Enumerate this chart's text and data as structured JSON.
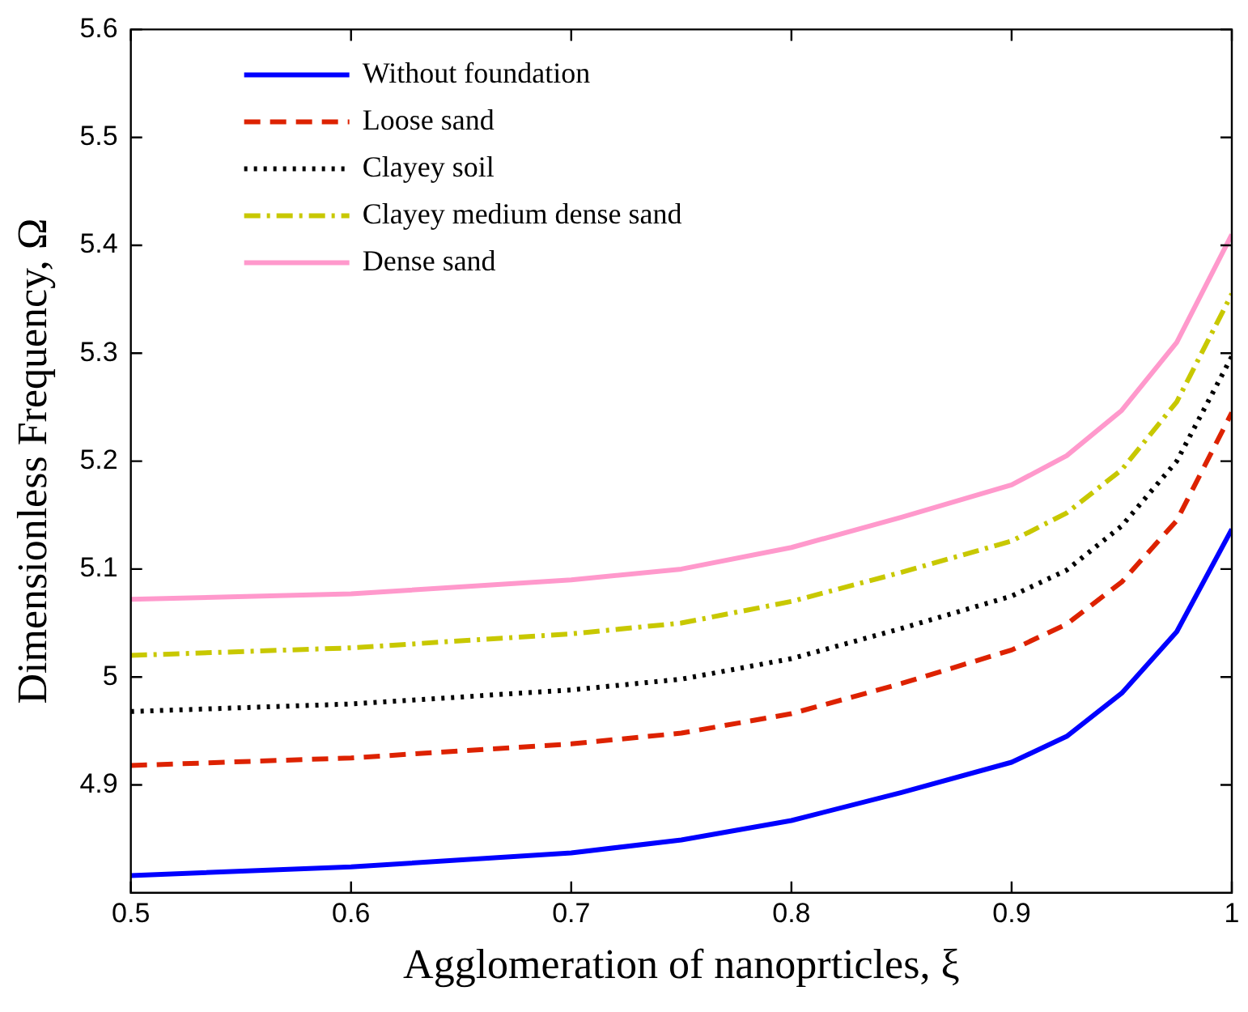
{
  "chart_data": {
    "type": "line",
    "xlabel": "Agglomeration of nanoprticles, ξ",
    "ylabel": "Dimensionless Frequency, Ω",
    "x": [
      0.5,
      0.6,
      0.7,
      0.75,
      0.8,
      0.85,
      0.9,
      0.925,
      0.95,
      0.975,
      1.0
    ],
    "series": [
      {
        "name": "Without foundation",
        "color": "#0000ff",
        "line_style": "solid",
        "values": [
          4.816,
          4.824,
          4.837,
          4.849,
          4.867,
          4.893,
          4.921,
          4.945,
          4.985,
          5.042,
          5.137
        ]
      },
      {
        "name": "Loose sand",
        "color": "#dd2200",
        "line_style": "dashed",
        "values": [
          4.918,
          4.925,
          4.938,
          4.948,
          4.966,
          4.994,
          5.025,
          5.049,
          5.088,
          5.145,
          5.245
        ]
      },
      {
        "name": "Clayey soil",
        "color": "#000000",
        "line_style": "dotted",
        "values": [
          4.968,
          4.975,
          4.988,
          4.998,
          5.017,
          5.045,
          5.075,
          5.099,
          5.14,
          5.2,
          5.297
        ]
      },
      {
        "name": "Clayey medium dense sand",
        "color": "#c8c800",
        "line_style": "dashdot",
        "values": [
          5.02,
          5.027,
          5.04,
          5.05,
          5.07,
          5.097,
          5.126,
          5.152,
          5.192,
          5.255,
          5.355
        ]
      },
      {
        "name": "Dense sand",
        "color": "#ff99cc",
        "line_style": "solid",
        "values": [
          5.072,
          5.077,
          5.09,
          5.1,
          5.12,
          5.148,
          5.178,
          5.205,
          5.247,
          5.31,
          5.41
        ]
      }
    ],
    "xlim": [
      0.5,
      1
    ],
    "xticks": [
      0.5,
      0.6,
      0.7,
      0.8,
      0.9,
      1
    ],
    "ylim": [
      4.8,
      5.6
    ],
    "yticks": [
      4.9,
      5,
      5.1,
      5.2,
      5.3,
      5.4,
      5.5,
      5.6
    ],
    "legend": "top left",
    "grid": false,
    "marker": "none"
  }
}
